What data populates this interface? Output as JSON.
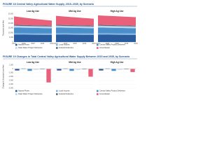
{
  "chart_data": [
    {
      "type": "area",
      "title": "FIGURE 18 Central Valley Agricultural Water Supply, 2015–2035, by Scenario",
      "subtitles": [
        "Low Ag Use",
        "Mid Ag Use",
        "High Ag Use"
      ],
      "ylabel": "Thousand acre-feet",
      "x": [
        2015,
        2020,
        2025,
        2030,
        2035
      ],
      "ylim": [
        0,
        30000
      ],
      "yticks": [
        0,
        {
          "value": 5000,
          "label": "5,000"
        },
        {
          "value": 10000,
          "label": "10,000"
        },
        {
          "value": 15000,
          "label": "15,000"
        },
        {
          "value": 20000,
          "label": "20,000"
        },
        {
          "value": 25000,
          "label": "25,000"
        },
        {
          "value": 30000,
          "label": "30,000"
        }
      ],
      "series": [
        {
          "name": "Natural Flows",
          "color": "#2b5c9e",
          "values": [
            [
              8000,
              7900,
              7800,
              7700,
              7600
            ],
            [
              8000,
              7900,
              7800,
              7700,
              7600
            ],
            [
              8000,
              7900,
              7800,
              7700,
              7600
            ]
          ]
        },
        {
          "name": "Local Imports",
          "color": "#7fb2e0",
          "values": [
            [
              1500,
              1550,
              1600,
              1600,
              1650
            ],
            [
              1500,
              1550,
              1600,
              1600,
              1650
            ],
            [
              1500,
              1550,
              1600,
              1600,
              1650
            ]
          ]
        },
        {
          "name": "Central Valley Project Deliveries",
          "color": "#4a8fc9",
          "values": [
            [
              6000,
              5800,
              5700,
              5600,
              5500
            ],
            [
              6000,
              5800,
              5700,
              5600,
              5500
            ],
            [
              6000,
              5800,
              5700,
              5600,
              5500
            ]
          ]
        },
        {
          "name": "State Water Project Deliveries",
          "color": "#b8d4ee",
          "values": [
            [
              2000,
              1950,
              1900,
              1850,
              1800
            ],
            [
              2000,
              1950,
              1900,
              1850,
              1800
            ],
            [
              2000,
              1950,
              1900,
              1850,
              1800
            ]
          ]
        },
        {
          "name": "Federal Deliveries",
          "color": "#5a6a7a",
          "values": [
            [
              1000,
              1000,
              950,
              950,
              900
            ],
            [
              1000,
              1000,
              950,
              950,
              900
            ],
            [
              1000,
              1000,
              950,
              950,
              900
            ]
          ]
        },
        {
          "name": "Groundwater",
          "color": "#e8607a",
          "values": [
            [
              9000,
              8000,
              7000,
              6200,
              5500
            ],
            [
              9500,
              9000,
              8500,
              8000,
              7500
            ],
            [
              10000,
              9800,
              9600,
              9400,
              9200
            ]
          ]
        }
      ]
    },
    {
      "type": "bar",
      "title": "FIGURE 19 Changes in Total Central Valley Agricultural Water Supply Between 2015 and 2035, by Scenario",
      "subtitles": [
        "Low Ag Use",
        "Mid Ag Use",
        "High Ag Use"
      ],
      "ylabel": "Change in thousand acre-feet",
      "ylim": [
        -5000,
        1000
      ],
      "yticks": [
        {
          "value": -5000,
          "label": "-5,000"
        },
        {
          "value": -4000,
          "label": "-4,000"
        },
        {
          "value": -3000,
          "label": "-3,000"
        },
        {
          "value": -2000,
          "label": "-2,000"
        },
        {
          "value": -1000,
          "label": "-1,000"
        },
        0,
        {
          "value": 1000,
          "label": "1,000"
        }
      ],
      "series": [
        {
          "name": "Natural Flows",
          "color": "#2b5c9e",
          "values": [
            -400,
            -400,
            -400
          ]
        },
        {
          "name": "Local Imports",
          "color": "#7fb2e0",
          "values": [
            150,
            150,
            150
          ]
        },
        {
          "name": "Central Valley Project Deliveries",
          "color": "#4a8fc9",
          "values": [
            -500,
            -500,
            -500
          ]
        },
        {
          "name": "State Water Project Deliveries",
          "color": "#b8d4ee",
          "values": [
            -200,
            -200,
            -200
          ]
        },
        {
          "name": "Federal Deliveries",
          "color": "#5a6a7a",
          "values": [
            -100,
            -100,
            -100
          ]
        },
        {
          "name": "Groundwater",
          "color": "#e8607a",
          "values": [
            -3500,
            -2000,
            -800
          ]
        }
      ]
    }
  ]
}
